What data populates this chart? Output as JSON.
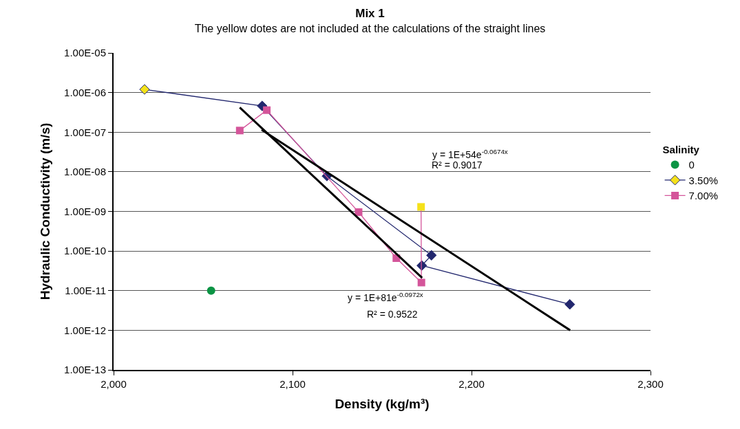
{
  "chart_data": {
    "type": "line",
    "title": "Mix 1",
    "subtitle": "The yellow dotes are not included at the calculations of the straight lines",
    "xlabel": "Density (kg/m³)",
    "ylabel": "Hydraulic Conductivity (m/s)",
    "legend_title": "Salinity",
    "log": "y",
    "xlim": [
      2000,
      2300
    ],
    "xticks": [
      {
        "value": 2000,
        "label": "2,000"
      },
      {
        "value": 2100,
        "label": "2,100"
      },
      {
        "value": 2200,
        "label": "2,200"
      },
      {
        "value": 2300,
        "label": "2,300"
      }
    ],
    "ylim": [
      1e-13,
      1e-05
    ],
    "yticks": [
      {
        "value": 1e-13,
        "label": "1.00E-13"
      },
      {
        "value": 1e-12,
        "label": "1.00E-12"
      },
      {
        "value": 1e-11,
        "label": "1.00E-11"
      },
      {
        "value": 1e-10,
        "label": "1.00E-10"
      },
      {
        "value": 1e-09,
        "label": "1.00E-09"
      },
      {
        "value": 1e-08,
        "label": "1.00E-08"
      },
      {
        "value": 1e-07,
        "label": "1.00E-07"
      },
      {
        "value": 1e-06,
        "label": "1.00E-06"
      },
      {
        "value": 1e-05,
        "label": "1.00E-05"
      }
    ],
    "grid": "y",
    "legend": "right",
    "series": [
      {
        "name": "0",
        "type": "scatter",
        "marker": "circle",
        "color": "#0b9444",
        "x": [
          2054.5
        ],
        "values": [
          1e-11
        ]
      },
      {
        "name": "3.50%",
        "type": "line",
        "marker": "diamond",
        "color": "#22276e",
        "colors": [
          "#f5e11a",
          "#22276e",
          "#22276e",
          "#22276e",
          "#22276e",
          "#22276e"
        ],
        "x": [
          2017.3,
          2083,
          2119.2,
          2177.6,
          2172.2,
          2254.9
        ],
        "values": [
          1.2e-06,
          4.6e-07,
          7.8e-09,
          7.8e-11,
          4.3e-11,
          4.5e-12
        ]
      },
      {
        "name": "7.00%",
        "type": "line",
        "marker": "square",
        "color": "#d4559a",
        "colors": [
          "#d4559a",
          "#d4559a",
          "#d4559a",
          "#d4559a",
          "#d4559a",
          "#f5e11a"
        ],
        "x": [
          2070.5,
          2085.6,
          2136.9,
          2158,
          2172,
          2171.8
        ],
        "values": [
          1.1e-07,
          3.6e-07,
          9.6e-10,
          6.6e-11,
          1.6e-11,
          1.3e-09
        ]
      },
      {
        "marker": "none",
        "color": "#000000",
        "x": [
          2070.5,
          2172.4
        ],
        "values": [
          4.2e-07,
          2.1e-11
        ]
      },
      {
        "marker": "none",
        "color": "#000000",
        "x": [
          2082.7,
          2255.1
        ],
        "values": [
          1.15e-07,
          1e-12
        ]
      }
    ],
    "annotations": [
      "y = 1E+54e$^{-0.0674x}$",
      "R² = 0.9017",
      "y = 1E+81e$^{-0.0972x}$",
      "R² = 0.9522"
    ]
  }
}
